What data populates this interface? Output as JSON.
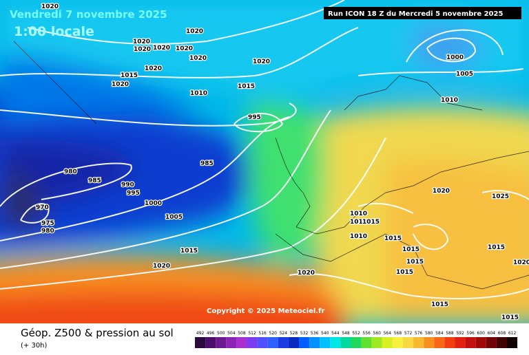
{
  "header": {
    "title": "Vendredi 7 novembre 2025",
    "time": "1:00 locale",
    "run": "Run ICON 18 Z du Mercredi 5 novembre 2025"
  },
  "copyright": "Copyright © 2025 Meteociel.fr",
  "isobar_labels": [
    "1020",
    "1020",
    "1020",
    "1020",
    "1020",
    "1020",
    "1020",
    "1020",
    "1015",
    "1020",
    "1010",
    "1015",
    "1020",
    "1000",
    "1005",
    "1010",
    "995",
    "985",
    "980",
    "985",
    "990",
    "995",
    "1000",
    "970",
    "975",
    "980",
    "1005",
    "1015",
    "1020",
    "1020",
    "1010",
    "1010",
    "1010",
    "1015",
    "1015",
    "1015",
    "1015",
    "1020",
    "1025",
    "1015",
    "1020",
    "1015",
    "1015",
    "1015"
  ],
  "footer": {
    "title": "Géop. Z500 & pression au sol",
    "lead": "(+ 30h)"
  },
  "scale": {
    "labels": [
      492,
      496,
      500,
      504,
      508,
      512,
      516,
      520,
      524,
      528,
      532,
      536,
      540,
      544,
      548,
      552,
      556,
      560,
      564,
      568,
      572,
      576,
      580,
      584,
      588,
      592,
      596,
      600,
      604,
      608,
      612
    ],
    "colors": [
      "#2b0a3d",
      "#4a0f6b",
      "#6b1a8f",
      "#8c25b3",
      "#a830d0",
      "#7a3cf0",
      "#5050ff",
      "#2f5fff",
      "#1a3ce0",
      "#0a2ac0",
      "#0060ff",
      "#0090ff",
      "#00c0ff",
      "#00e5e5",
      "#00d8a0",
      "#20d860",
      "#60e030",
      "#a0e820",
      "#d8f020",
      "#f8f040",
      "#f8d840",
      "#f8b830",
      "#f89020",
      "#f86818",
      "#f04010",
      "#e02010",
      "#c01010",
      "#a00808",
      "#700404",
      "#400202",
      "#100000"
    ]
  }
}
